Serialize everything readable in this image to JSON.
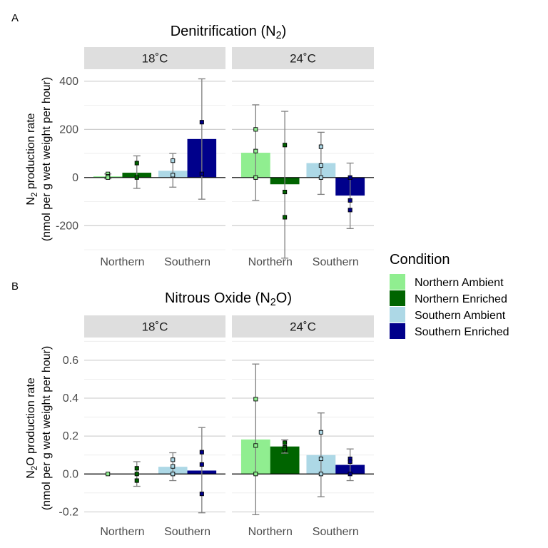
{
  "chart_data": [
    {
      "panel_label": "A",
      "type": "bar",
      "title": "Denitrification (N2)",
      "title_parts": [
        "Denitrification (N",
        "2",
        ")"
      ],
      "ylabel_line1_parts": [
        "N",
        "2",
        " production rate"
      ],
      "ylabel_line2": "(nmol per g wet weight per hour)",
      "categories": [
        "Northern",
        "Southern"
      ],
      "ylim": [
        -300,
        450
      ],
      "yticks": [
        -200,
        0,
        200,
        400
      ],
      "ytick_labels": [
        "-200",
        "0",
        "200",
        "400"
      ],
      "grid": true,
      "facets": [
        {
          "label": "18˚C",
          "bars": [
            {
              "series": "Northern Ambient",
              "category": "Northern",
              "value": 5,
              "err_low": -5,
              "err_high": 15,
              "points": [
                15,
                5,
                0
              ]
            },
            {
              "series": "Northern Enriched",
              "category": "Northern",
              "value": 20,
              "err_low": -45,
              "err_high": 90,
              "points": [
                60,
                0
              ]
            },
            {
              "series": "Southern Ambient",
              "category": "Southern",
              "value": 28,
              "err_low": -40,
              "err_high": 100,
              "points": [
                70,
                10
              ]
            },
            {
              "series": "Southern Enriched",
              "category": "Southern",
              "value": 160,
              "err_low": -90,
              "err_high": 410,
              "points": [
                230,
                15
              ]
            }
          ]
        },
        {
          "label": "24˚C",
          "bars": [
            {
              "series": "Northern Ambient",
              "category": "Northern",
              "value": 103,
              "err_low": -95,
              "err_high": 302,
              "points": [
                200,
                110,
                0
              ]
            },
            {
              "series": "Northern Enriched",
              "category": "Northern",
              "value": -28,
              "err_low": -335,
              "err_high": 275,
              "points": [
                135,
                -60,
                -165
              ]
            },
            {
              "series": "Southern Ambient",
              "category": "Southern",
              "value": 60,
              "err_low": -70,
              "err_high": 188,
              "points": [
                128,
                50,
                0
              ]
            },
            {
              "series": "Southern Enriched",
              "category": "Southern",
              "value": -75,
              "err_low": -212,
              "err_high": 60,
              "points": [
                0,
                -95,
                -135
              ]
            }
          ]
        }
      ]
    },
    {
      "panel_label": "B",
      "type": "bar",
      "title": "Nitrous Oxide (N2O)",
      "title_parts": [
        "Nitrous Oxide (N",
        "2",
        "O)"
      ],
      "ylabel_line1_parts": [
        "N",
        "2",
        "O production rate"
      ],
      "ylabel_line2": "(nmol per g wet weight per hour)",
      "categories": [
        "Northern",
        "Southern"
      ],
      "ylim": [
        -0.24,
        0.72
      ],
      "yticks": [
        -0.2,
        0.0,
        0.2,
        0.4,
        0.6
      ],
      "ytick_labels": [
        "-0.2",
        "0.0",
        "0.2",
        "0.4",
        "0.6"
      ],
      "grid": true,
      "facets": [
        {
          "label": "18˚C",
          "bars": [
            {
              "series": "Northern Ambient",
              "category": "Northern",
              "value": 0.0,
              "err_low": 0.0,
              "err_high": 0.0,
              "points": [
                0.0
              ]
            },
            {
              "series": "Northern Enriched",
              "category": "Northern",
              "value": 0.0,
              "err_low": -0.065,
              "err_high": 0.065,
              "points": [
                0.03,
                0.0,
                -0.035
              ]
            },
            {
              "series": "Southern Ambient",
              "category": "Southern",
              "value": 0.038,
              "err_low": -0.035,
              "err_high": 0.112,
              "points": [
                0.075,
                0.04,
                0.0
              ]
            },
            {
              "series": "Southern Enriched",
              "category": "Southern",
              "value": 0.018,
              "err_low": -0.205,
              "err_high": 0.245,
              "points": [
                0.115,
                0.05,
                -0.105
              ]
            }
          ]
        },
        {
          "label": "24˚C",
          "bars": [
            {
              "series": "Northern Ambient",
              "category": "Northern",
              "value": 0.182,
              "err_low": -0.215,
              "err_high": 0.58,
              "points": [
                0.395,
                0.15,
                0.0
              ]
            },
            {
              "series": "Northern Enriched",
              "category": "Northern",
              "value": 0.145,
              "err_low": 0.11,
              "err_high": 0.18,
              "points": [
                0.165,
                0.14,
                0.13
              ]
            },
            {
              "series": "Southern Ambient",
              "category": "Southern",
              "value": 0.1,
              "err_low": -0.12,
              "err_high": 0.322,
              "points": [
                0.22,
                0.08,
                0.0
              ]
            },
            {
              "series": "Southern Enriched",
              "category": "Southern",
              "value": 0.048,
              "err_low": -0.035,
              "err_high": 0.132,
              "points": [
                0.08,
                0.065,
                0.0
              ]
            }
          ]
        }
      ]
    }
  ],
  "legend": {
    "title": "Condition",
    "placement": "right",
    "items": [
      {
        "label": "Northern Ambient",
        "color": "#90EE90"
      },
      {
        "label": "Northern Enriched",
        "color": "#006400"
      },
      {
        "label": "Southern Ambient",
        "color": "#ADD8E6"
      },
      {
        "label": "Southern Enriched",
        "color": "#00008B"
      }
    ]
  },
  "colors": {
    "Northern Ambient": "#90EE90",
    "Northern Enriched": "#006400",
    "Southern Ambient": "#ADD8E6",
    "Southern Enriched": "#00008B",
    "strip_background": "#DEDEDE",
    "grid_major": "#C8C8C8",
    "grid_minor": "#EBEBEB",
    "error_bar": "#7F7F7F"
  }
}
